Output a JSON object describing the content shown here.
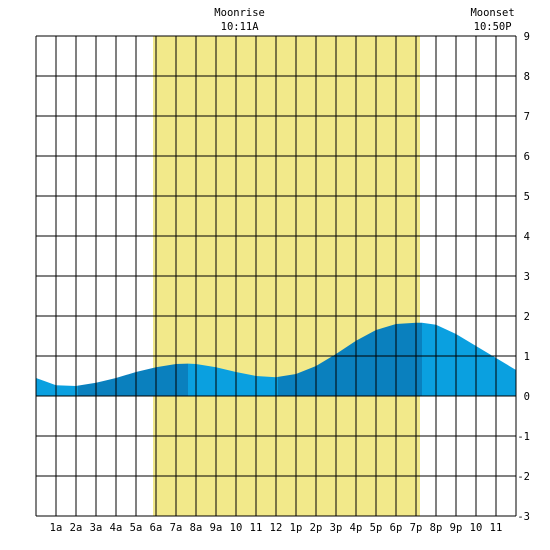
{
  "chart_data": {
    "type": "area",
    "title": "",
    "xlabel": "",
    "ylabel": "",
    "x_range": [
      0,
      24
    ],
    "ylim": [
      -3,
      9
    ],
    "grid": true,
    "x_tick_labels": [
      "1a",
      "2a",
      "3a",
      "4a",
      "5a",
      "6a",
      "7a",
      "8a",
      "9a",
      "10",
      "11",
      "12",
      "1p",
      "2p",
      "3p",
      "4p",
      "5p",
      "6p",
      "7p",
      "8p",
      "9p",
      "10",
      "11"
    ],
    "y_tick_labels": [
      "9",
      "8",
      "7",
      "6",
      "5",
      "4",
      "3",
      "2",
      "1",
      "0",
      "-1",
      "-2",
      "-3"
    ],
    "y_ticks": [
      9,
      8,
      7,
      6,
      5,
      4,
      3,
      2,
      1,
      0,
      -1,
      -2,
      -3
    ],
    "daylight_span_hours": [
      5.85,
      19.2
    ],
    "events": [
      {
        "label": "Moonrise",
        "time": "10:11A",
        "hour": 10.18
      },
      {
        "label": "Moonset",
        "time": "10:50P",
        "hour": 22.83
      }
    ],
    "series": [
      {
        "x": [
          0,
          1,
          2,
          3,
          4,
          5,
          6,
          7,
          7.6,
          8,
          9,
          10,
          11,
          12,
          13,
          14,
          15,
          16,
          17,
          18,
          19,
          19.3,
          20,
          21,
          22,
          23,
          24
        ],
        "values": [
          0.45,
          0.27,
          0.25,
          0.33,
          0.45,
          0.6,
          0.72,
          0.8,
          0.81,
          0.8,
          0.72,
          0.6,
          0.5,
          0.47,
          0.55,
          0.75,
          1.05,
          1.38,
          1.65,
          1.8,
          1.83,
          1.83,
          1.78,
          1.55,
          1.25,
          0.95,
          0.65
        ]
      }
    ],
    "shade_segments": [
      {
        "from": 0,
        "to": 2.1,
        "shade": "light"
      },
      {
        "from": 2.1,
        "to": 7.6,
        "shade": "dark"
      },
      {
        "from": 7.6,
        "to": 12.1,
        "shade": "light"
      },
      {
        "from": 12.1,
        "to": 19.3,
        "shade": "dark"
      },
      {
        "from": 19.3,
        "to": 24,
        "shade": "light"
      }
    ],
    "colors": {
      "daylight": "#f2e98a",
      "water_light": "#0aa0e0",
      "water_dark": "#0a80be",
      "grid": "#000000",
      "background": "#ffffff"
    }
  }
}
